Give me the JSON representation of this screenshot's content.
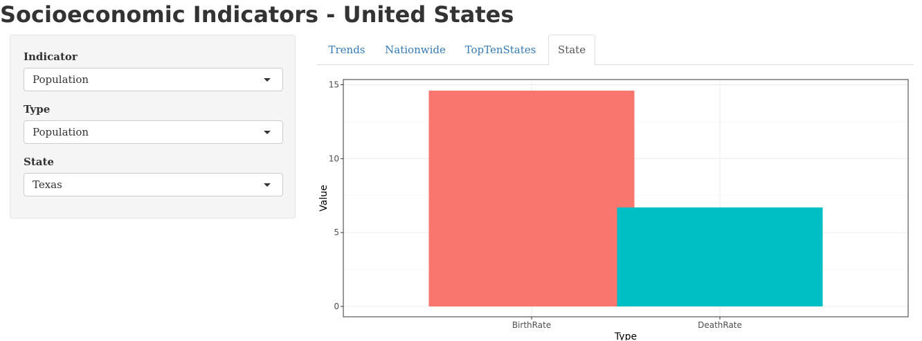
{
  "app": {
    "title": "Socioeconomic Indicators - United States"
  },
  "sidebar": {
    "indicator": {
      "label": "Indicator",
      "value": "Population"
    },
    "type": {
      "label": "Type",
      "value": "Population"
    },
    "state": {
      "label": "State",
      "value": "Texas"
    }
  },
  "tabs": [
    {
      "label": "Trends",
      "active": false
    },
    {
      "label": "Nationwide",
      "active": false
    },
    {
      "label": "TopTenStates",
      "active": false
    },
    {
      "label": "State",
      "active": true
    }
  ],
  "colors": {
    "link": "#337ab7",
    "bar_birth": "#F8766D",
    "bar_death": "#00BFC4"
  },
  "chart_data": {
    "type": "bar",
    "categories": [
      "BirthRate",
      "DeathRate"
    ],
    "values": [
      14.6,
      6.7
    ],
    "bar_colors": [
      "#F8766D",
      "#00BFC4"
    ],
    "xlabel": "Type",
    "ylabel": "Value",
    "ylim": [
      -0.7,
      15.35
    ],
    "yticks": [
      0,
      5,
      10,
      15
    ],
    "grid": true
  }
}
